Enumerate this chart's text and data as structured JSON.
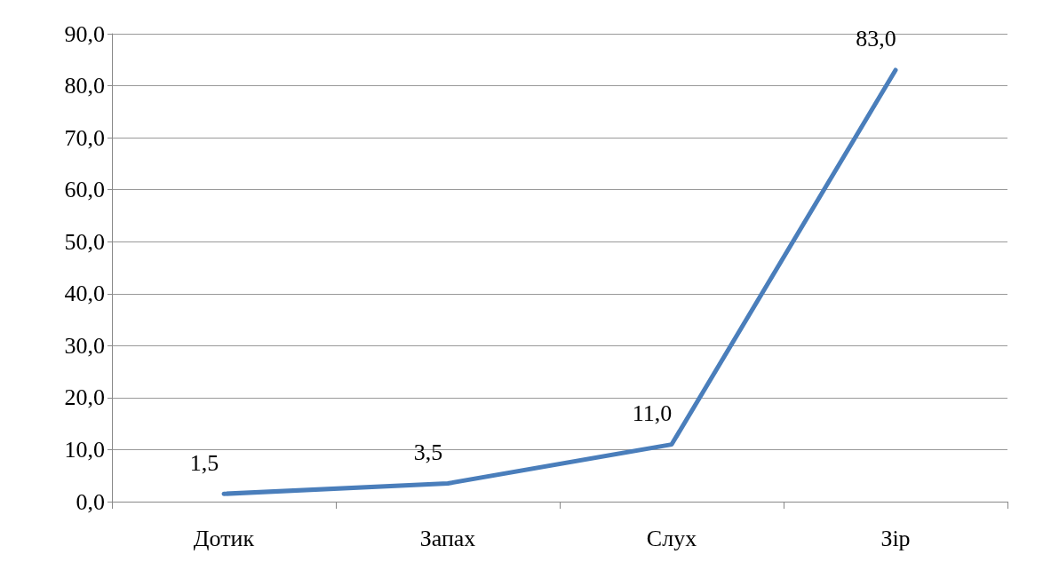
{
  "chart_data": {
    "type": "line",
    "categories": [
      "Дотик",
      "Запах",
      "Слух",
      "Зір"
    ],
    "series": [
      {
        "color": "#4a7ebb",
        "values": [
          1.5,
          3.5,
          11.0,
          83.0
        ],
        "value_labels": [
          "1,5",
          "3,5",
          "11,0",
          "83,0"
        ]
      }
    ],
    "ylim": [
      0,
      90
    ],
    "yticks": [
      {
        "value": 0,
        "label": "0,0"
      },
      {
        "value": 10,
        "label": "10,0"
      },
      {
        "value": 20,
        "label": "20,0"
      },
      {
        "value": 30,
        "label": "30,0"
      },
      {
        "value": 40,
        "label": "40,0"
      },
      {
        "value": 50,
        "label": "50,0"
      },
      {
        "value": 60,
        "label": "60,0"
      },
      {
        "value": 70,
        "label": "70,0"
      },
      {
        "value": 80,
        "label": "80,0"
      },
      {
        "value": 90,
        "label": "90,0"
      }
    ],
    "grid": "y",
    "marker": "none",
    "line_style": "solid"
  }
}
